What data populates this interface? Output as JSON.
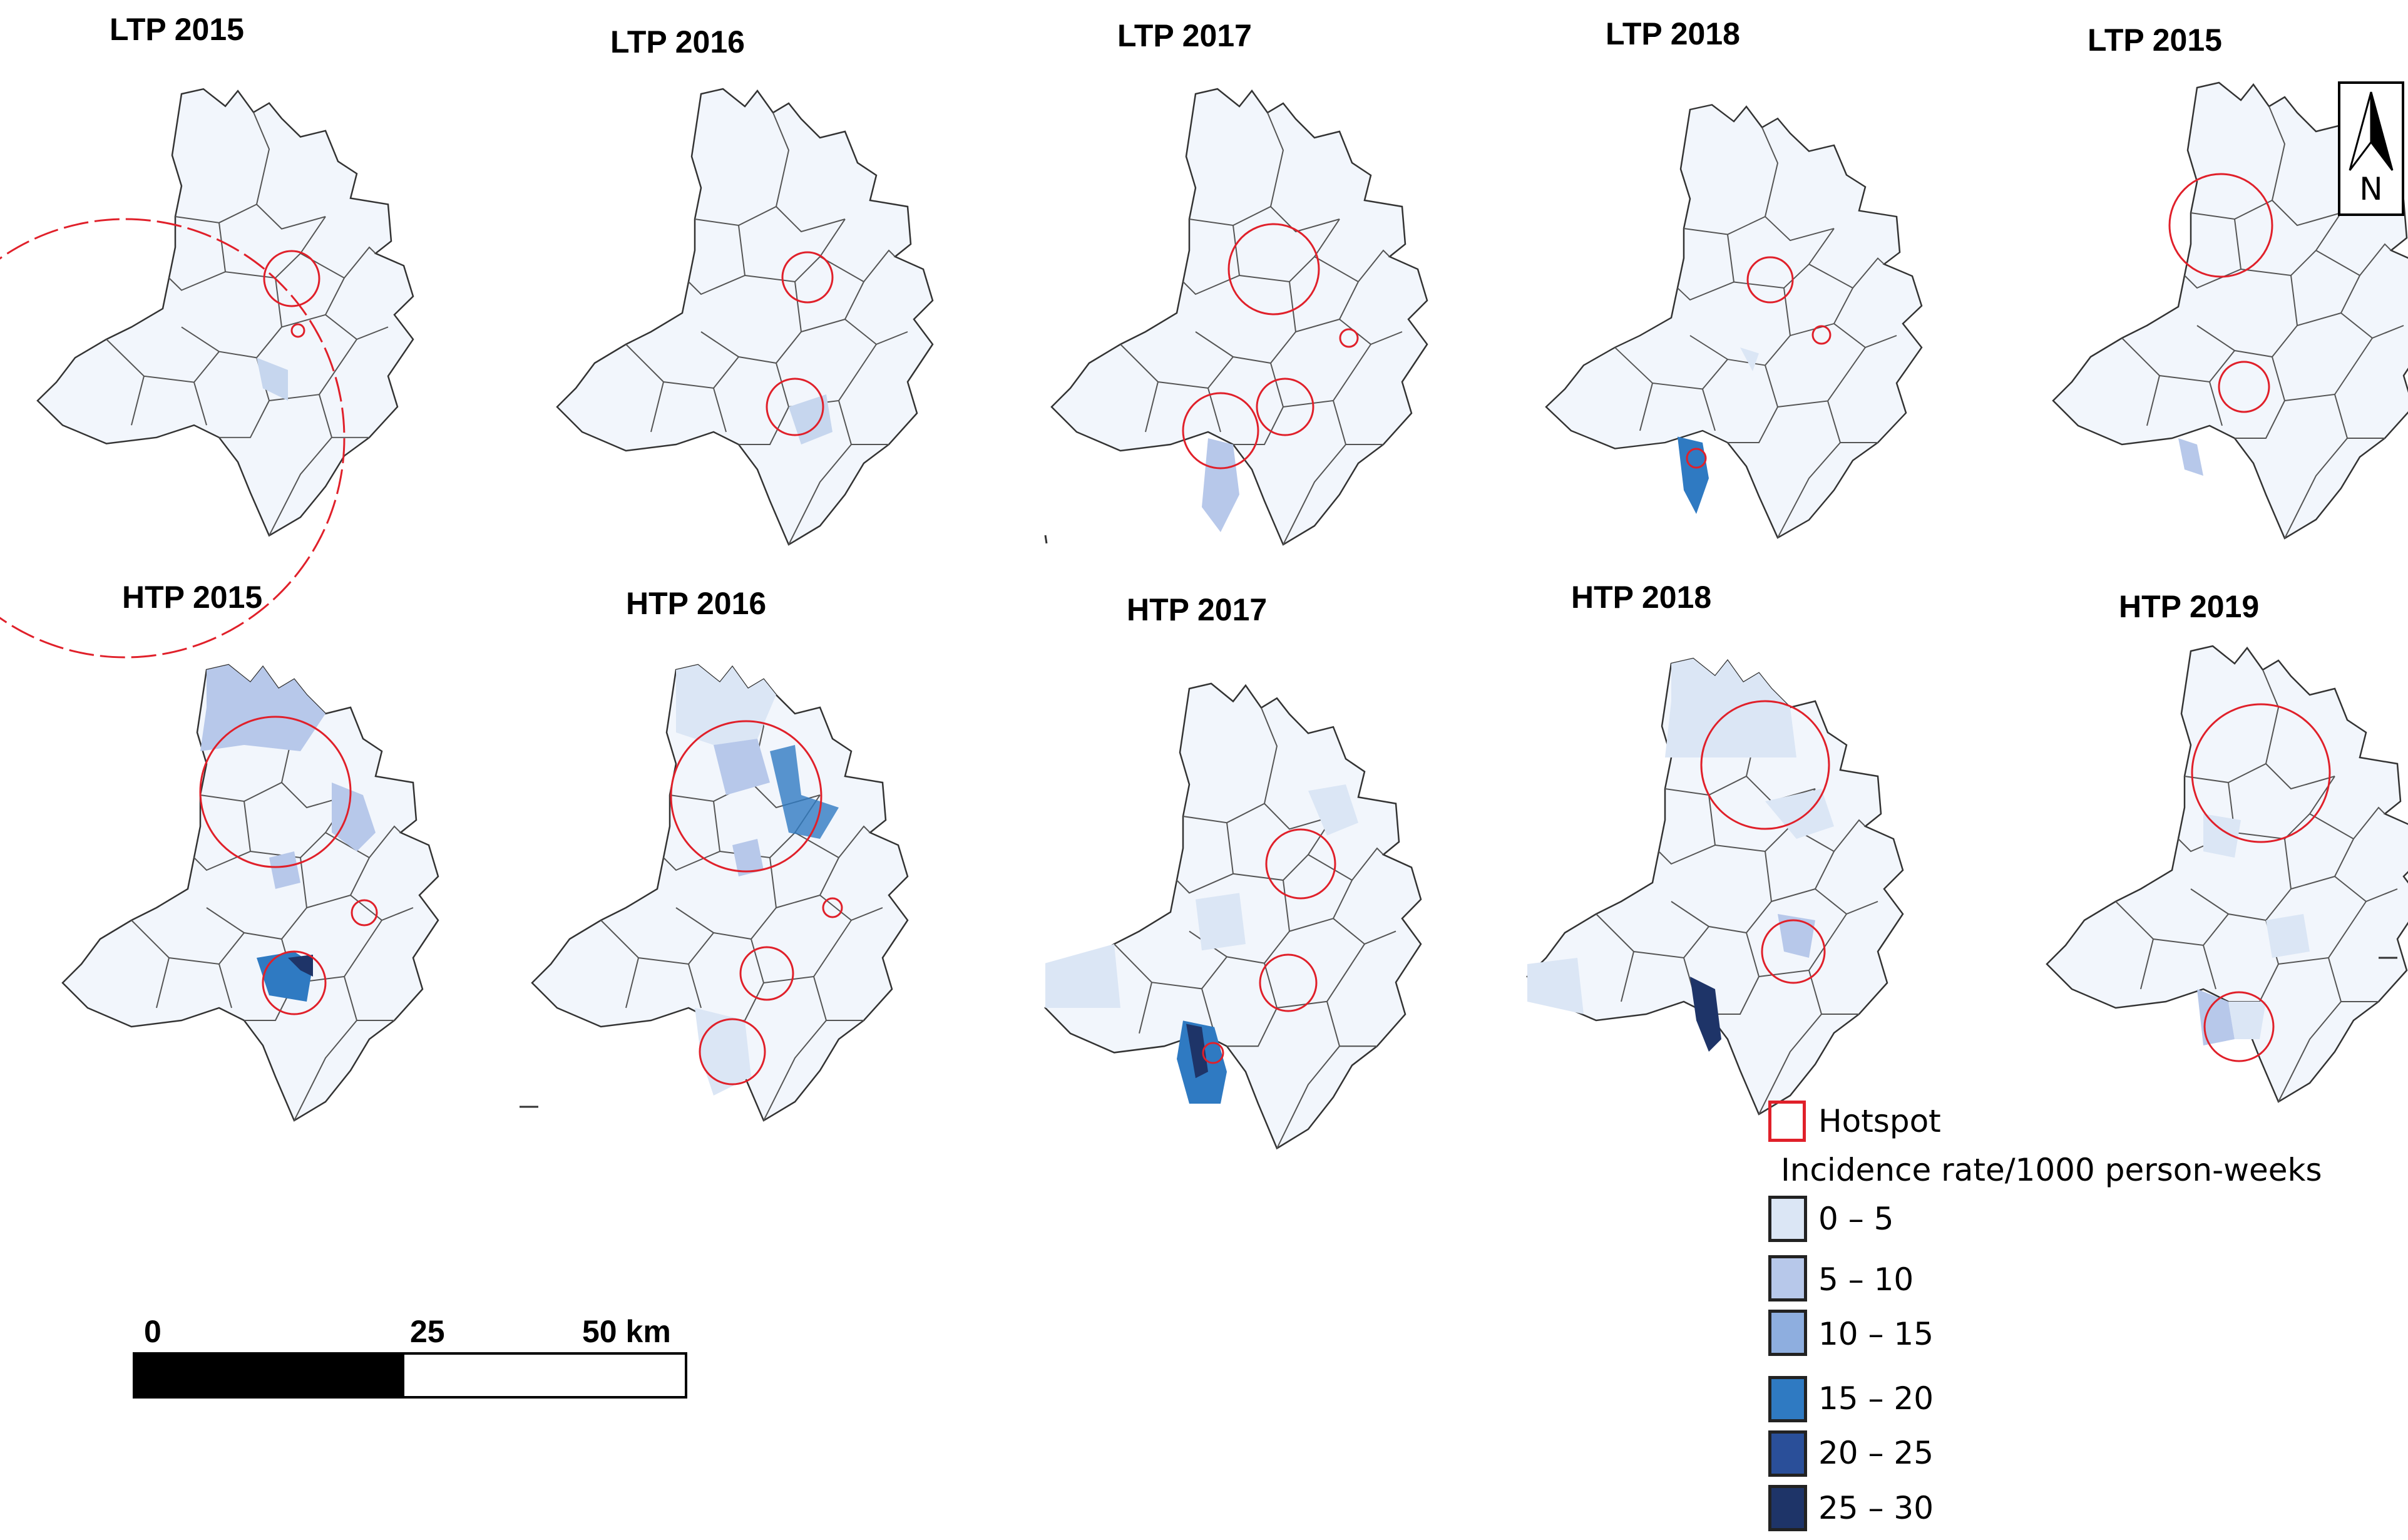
{
  "panels": [
    {
      "title": "LTP 2015"
    },
    {
      "title": "LTP 2016"
    },
    {
      "title": "LTP 2017"
    },
    {
      "title": "LTP 2018"
    },
    {
      "title": "LTP 2015"
    },
    {
      "title": "HTP 2015"
    },
    {
      "title": "HTP 2016"
    },
    {
      "title": "HTP 2017"
    },
    {
      "title": "HTP 2018"
    },
    {
      "title": "HTP 2019"
    }
  ],
  "north_arrow": {
    "label": "N"
  },
  "legend": {
    "hotspot_label": "Hotspot",
    "title": "Incidence rate/1000 person-weeks",
    "classes": [
      {
        "label": "0 – 5",
        "color": "#dbe6f5"
      },
      {
        "label": "5 – 10",
        "color": "#b7c8ea"
      },
      {
        "label": "10 – 15",
        "color": "#8eaedf"
      },
      {
        "label": "15 – 20",
        "color": "#2f7ac2"
      },
      {
        "label": "20 – 25",
        "color": "#2a4f99"
      },
      {
        "label": "25 – 30",
        "color": "#1e3468"
      }
    ],
    "hotspot_color": "#e0202a"
  },
  "scale": {
    "labels": [
      "0",
      "25",
      "50 km"
    ]
  }
}
